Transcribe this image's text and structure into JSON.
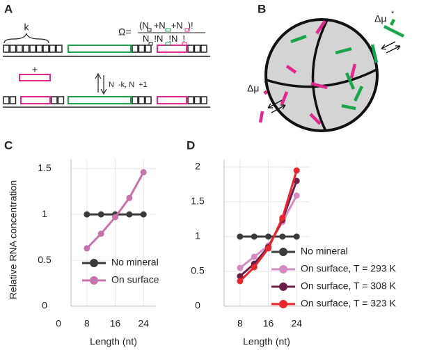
{
  "panel_labels": [
    "A",
    "B",
    "C",
    "D"
  ],
  "diagram_a": {
    "k": "k",
    "plus": "+",
    "omega": "Ω=",
    "numerator": [
      "(N",
      "+N",
      "+N",
      ")!"
    ],
    "denominator": [
      "N",
      "!N",
      "!N",
      "!"
    ],
    "transition": [
      "N",
      "-k, N",
      "+1"
    ]
  },
  "diagram_b": {
    "delta_mu": [
      "Δμ",
      "Δμ"
    ],
    "star": [
      "*",
      "*"
    ]
  },
  "chart_data": [
    {
      "type": "line",
      "ylabel": "Relative RNA concentration",
      "xlabel": "Length (nt)",
      "x": [
        8,
        12,
        16,
        20,
        24
      ],
      "xlim": [
        3.5,
        27.5
      ],
      "xticks": [
        0,
        8,
        16,
        24
      ],
      "ylim": [
        0,
        1.6
      ],
      "yticks": [
        0,
        0.5,
        1,
        1.5
      ],
      "grid": true,
      "legend": "lower right",
      "series": [
        {
          "name": "No mineral",
          "color": "#3b3b3b",
          "values": [
            1,
            1,
            1,
            1,
            1
          ]
        },
        {
          "name": "On surface",
          "color": "#c673ad",
          "values": [
            0.63,
            0.79,
            0.97,
            1.18,
            1.46
          ]
        }
      ]
    },
    {
      "type": "line",
      "xlabel": "Length (nt)",
      "x": [
        8,
        12,
        16,
        20,
        24
      ],
      "xlim": [
        3.5,
        27.5
      ],
      "xticks": [
        8,
        16,
        24
      ],
      "ylim": [
        0,
        2.1
      ],
      "yticks": [
        0,
        0.5,
        1,
        1.5,
        2
      ],
      "grid": true,
      "legend": "lower right",
      "series": [
        {
          "name": "No mineral",
          "color": "#3b3b3b",
          "values": [
            1,
            1,
            1,
            1,
            1
          ]
        },
        {
          "name": "On surface, T = 293 K",
          "color": "#d58bc1",
          "values": [
            0.55,
            0.71,
            0.87,
            1.21,
            1.59
          ]
        },
        {
          "name": "On surface, T = 308 K",
          "color": "#6b1f4a",
          "values": [
            0.43,
            0.61,
            0.85,
            1.24,
            1.8
          ]
        },
        {
          "name": "On surface, T = 323 K",
          "color": "#e8262b",
          "values": [
            0.36,
            0.56,
            0.83,
            1.27,
            1.95
          ]
        }
      ]
    }
  ]
}
